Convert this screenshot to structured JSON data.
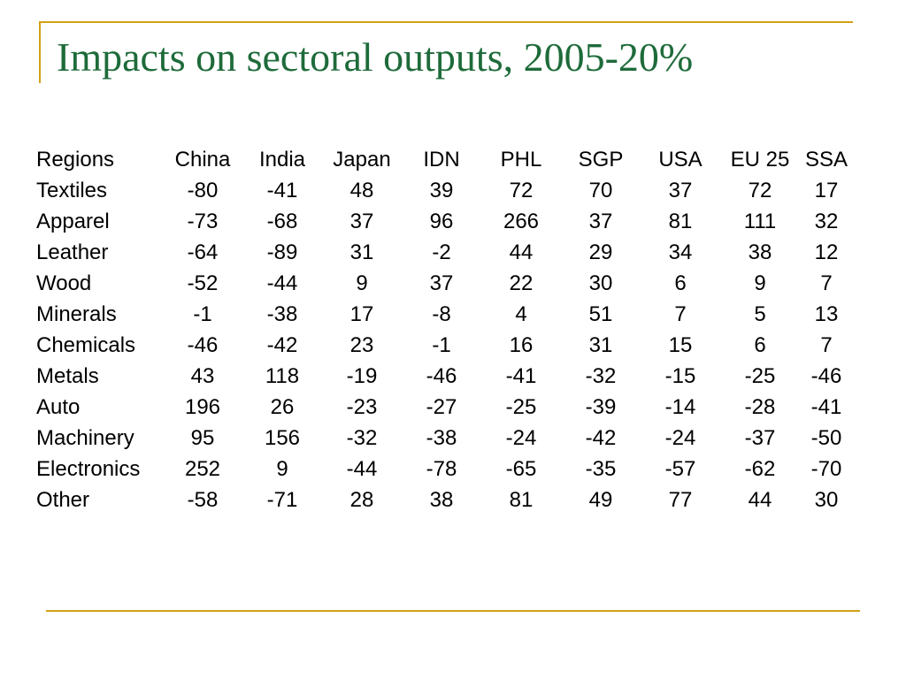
{
  "title": "Impacts on sectoral outputs, 2005-20%",
  "table": {
    "header_label": "Regions",
    "columns": [
      "China",
      "India",
      "Japan",
      "IDN",
      "PHL",
      "SGP",
      "USA",
      "EU 25",
      "SSA"
    ],
    "rows": [
      {
        "label": "Textiles",
        "values": [
          "-80",
          "-41",
          "48",
          "39",
          "72",
          "70",
          "37",
          "72",
          "17"
        ]
      },
      {
        "label": "Apparel",
        "values": [
          "-73",
          "-68",
          "37",
          "96",
          "266",
          "37",
          "81",
          "111",
          "32"
        ]
      },
      {
        "label": "Leather",
        "values": [
          "-64",
          "-89",
          "31",
          "-2",
          "44",
          "29",
          "34",
          "38",
          "12"
        ]
      },
      {
        "label": "Wood",
        "values": [
          "-52",
          "-44",
          "9",
          "37",
          "22",
          "30",
          "6",
          "9",
          "7"
        ]
      },
      {
        "label": "Minerals",
        "values": [
          "-1",
          "-38",
          "17",
          "-8",
          "4",
          "51",
          "7",
          "5",
          "13"
        ]
      },
      {
        "label": "Chemicals",
        "values": [
          "-46",
          "-42",
          "23",
          "-1",
          "16",
          "31",
          "15",
          "6",
          "7"
        ]
      },
      {
        "label": "Metals",
        "values": [
          "43",
          "118",
          "-19",
          "-46",
          "-41",
          "-32",
          "-15",
          "-25",
          "-46"
        ]
      },
      {
        "label": "Auto",
        "values": [
          "196",
          "26",
          "-23",
          "-27",
          "-25",
          "-39",
          "-14",
          "-28",
          "-41"
        ]
      },
      {
        "label": "Machinery",
        "values": [
          "95",
          "156",
          "-32",
          "-38",
          "-24",
          "-42",
          "-24",
          "-37",
          "-50"
        ]
      },
      {
        "label": "Electronics",
        "values": [
          "252",
          "9",
          "-44",
          "-78",
          "-65",
          "-35",
          "-57",
          "-62",
          "-70"
        ]
      },
      {
        "label": "Other",
        "values": [
          "-58",
          "-71",
          "28",
          "38",
          "81",
          "49",
          "77",
          "44",
          "30"
        ]
      }
    ]
  },
  "colors": {
    "title": "#1e6b3a",
    "frame": "#d4a017",
    "text": "#000000",
    "background": "#ffffff"
  }
}
